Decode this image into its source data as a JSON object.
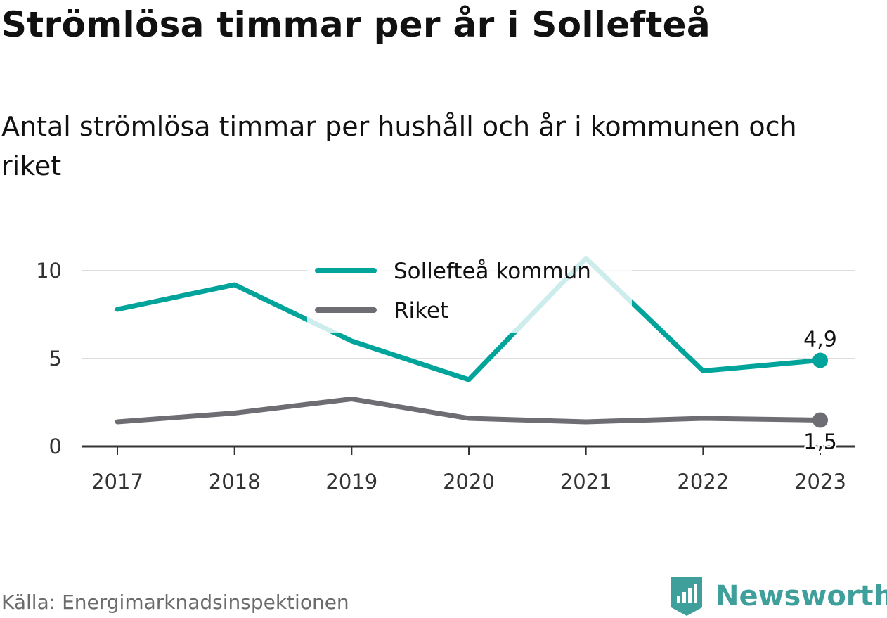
{
  "title": "Strömlösa timmar per år i Sollefteå",
  "subtitle": "Antal strömlösa timmar per hushåll och år i kommunen och riket",
  "source": "Källa: Energimarknadsinspektionen",
  "brand": "Newsworthy",
  "colors": {
    "sollefteå": "#00a49a",
    "riket": "#6e6d73",
    "grid": "#dddddd",
    "axis": "#333333",
    "brand": "#3f9f9a"
  },
  "chart_data": {
    "type": "line",
    "x": [
      "2017",
      "2018",
      "2019",
      "2020",
      "2021",
      "2022",
      "2023"
    ],
    "series": [
      {
        "name": "Sollefteå kommun",
        "values": [
          7.8,
          9.2,
          6.0,
          3.8,
          10.7,
          4.3,
          4.9
        ],
        "end_label": "4,9"
      },
      {
        "name": "Riket",
        "values": [
          1.4,
          1.9,
          2.7,
          1.6,
          1.4,
          1.6,
          1.5
        ],
        "end_label": "1,5"
      }
    ],
    "y_ticks": [
      0,
      5,
      10
    ],
    "y_tick_labels": [
      "0",
      "5",
      "10"
    ],
    "ylim": [
      0,
      10.7
    ],
    "grid": true,
    "legend": "top-center",
    "xlabel": "",
    "ylabel": ""
  }
}
